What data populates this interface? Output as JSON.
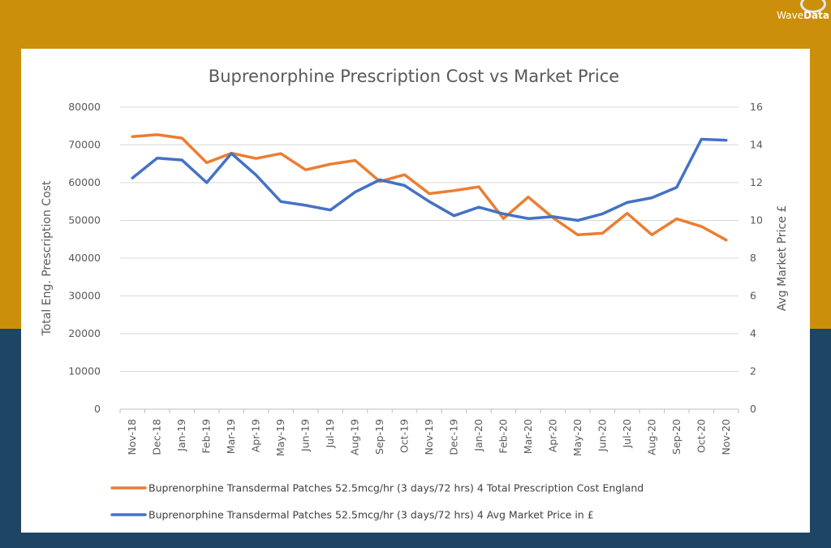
{
  "brand": {
    "name_light": "Wave",
    "name_bold": "Data"
  },
  "chart_data": {
    "type": "line",
    "title": "Buprenorphine Prescription Cost vs Market Price",
    "ylabel_left": "Total Eng. Prescription Cost",
    "ylabel_right": "Avg Market Price £",
    "ylim_left": [
      0,
      80000
    ],
    "ylim_right": [
      0,
      16
    ],
    "yticks_left": [
      "0",
      "10000",
      "20000",
      "30000",
      "40000",
      "50000",
      "60000",
      "70000",
      "80000"
    ],
    "yticks_right": [
      "0",
      "2",
      "4",
      "6",
      "8",
      "10",
      "12",
      "14",
      "16"
    ],
    "grid": true,
    "legend_position": "bottom",
    "categories": [
      "Nov-18",
      "Dec-18",
      "Jan-19",
      "Feb-19",
      "Mar-19",
      "Apr-19",
      "May-19",
      "Jun-19",
      "Jul-19",
      "Aug-19",
      "Sep-19",
      "Oct-19",
      "Nov-19",
      "Dec-19",
      "Jan-20",
      "Feb-20",
      "Mar-20",
      "Apr-20",
      "May-20",
      "Jun-20",
      "Jul-20",
      "Aug-20",
      "Sep-20",
      "Oct-20",
      "Nov-20"
    ],
    "series": [
      {
        "name": "Buprenorphine Transdermal Patches 52.5mcg/hr (3 days/72 hrs) 4 Total Prescription Cost England",
        "axis": "left",
        "color": "#ed7d31",
        "values": [
          72200,
          72700,
          71800,
          65300,
          67800,
          66400,
          67700,
          63400,
          64900,
          65900,
          60300,
          62100,
          57100,
          57900,
          58900,
          50500,
          56200,
          50700,
          46200,
          46600,
          51900,
          46200,
          50400,
          48400,
          44800
        ]
      },
      {
        "name": "Buprenorphine Transdermal Patches 52.5mcg/hr (3 days/72 hrs) 4 Avg Market Price in £",
        "axis": "right",
        "color": "#4472c4",
        "values": [
          12.25,
          13.3,
          13.2,
          12.0,
          13.55,
          12.4,
          11.0,
          10.8,
          10.55,
          11.5,
          12.15,
          11.85,
          11.0,
          10.25,
          10.7,
          10.35,
          10.1,
          10.2,
          10.0,
          10.35,
          10.95,
          11.2,
          11.75,
          14.3,
          14.25
        ]
      }
    ]
  }
}
